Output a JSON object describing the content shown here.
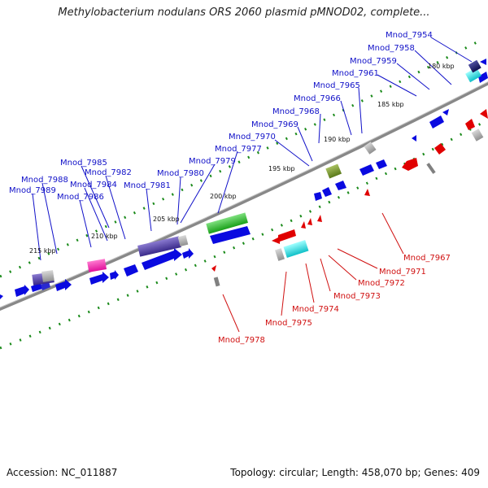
{
  "header": {
    "title": "Methylobacterium nodulans ORS 2060 plasmid pMNOD02, complete..."
  },
  "footer": {
    "accession": "Accession: NC_011887",
    "summary": "Topology: circular; Length: 458,070 bp; Genes: 409"
  },
  "colors": {
    "forward_gene": "#0a0ae0",
    "reverse_gene": "#e00000",
    "backbone": "#808080",
    "tick": "#1a8a1a",
    "forward_label": "#1010c8",
    "reverse_label": "#d01010"
  },
  "kbp_labels": [
    "180 kbp",
    "185 kbp",
    "190 kbp",
    "195 kbp",
    "200 kbp",
    "205 kbp",
    "210 kbp",
    "215 kbp"
  ],
  "forward_labels": [
    "Mnod_7954",
    "Mnod_7958",
    "Mnod_7959",
    "Mnod_7961",
    "Mnod_7965",
    "Mnod_7966",
    "Mnod_7968",
    "Mnod_7969",
    "Mnod_7970",
    "Mnod_7977",
    "Mnod_7979",
    "Mnod_7980",
    "Mnod_7981",
    "Mnod_7985",
    "Mnod_7982",
    "Mnod_7988",
    "Mnod_7984",
    "Mnod_7989",
    "Mnod_7986"
  ],
  "reverse_labels": [
    "Mnod_7967",
    "Mnod_7971",
    "Mnod_7972",
    "Mnod_7973",
    "Mnod_7974",
    "Mnod_7975",
    "Mnod_7978"
  ]
}
